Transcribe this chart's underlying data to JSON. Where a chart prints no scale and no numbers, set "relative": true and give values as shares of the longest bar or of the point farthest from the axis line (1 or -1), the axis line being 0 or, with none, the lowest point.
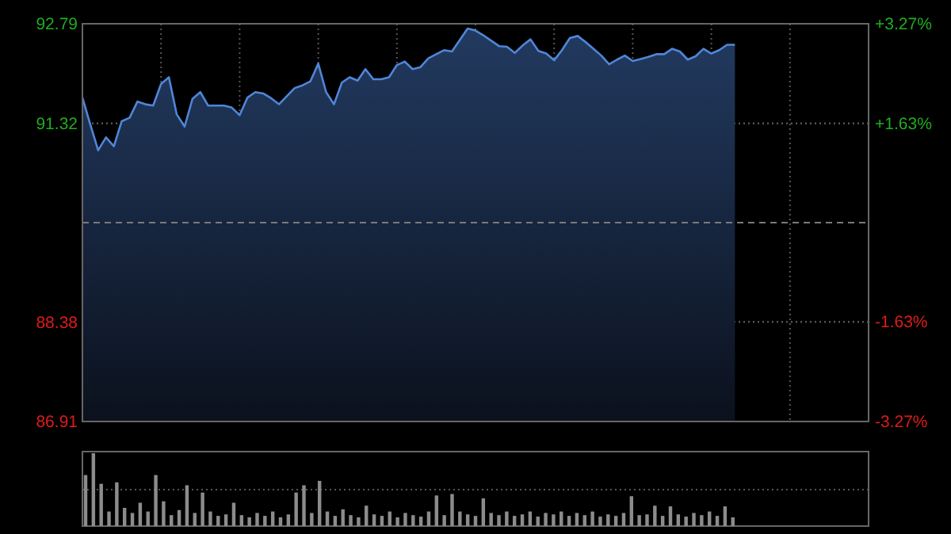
{
  "chart_data": [
    {
      "type": "area",
      "color": "#4f86d9",
      "grid": true,
      "categories": [
        null,
        null,
        null,
        null,
        null,
        null,
        null,
        null,
        null,
        null,
        null,
        null,
        null,
        null,
        null,
        null,
        null,
        null,
        null,
        null,
        null,
        null,
        null,
        null,
        null,
        null,
        null,
        null,
        null,
        null,
        null,
        null,
        null,
        null,
        null,
        null,
        null,
        null,
        null,
        null,
        null,
        null,
        null,
        null,
        null,
        null,
        null,
        null,
        null,
        null,
        null,
        null,
        null,
        null,
        null,
        null,
        null,
        null,
        null,
        null,
        null,
        null,
        null,
        null,
        null,
        null,
        null,
        null,
        null,
        null,
        null,
        null,
        null,
        null,
        null,
        null,
        null,
        null,
        null,
        null,
        null,
        null,
        null,
        null,
        null,
        null,
        null,
        null,
        null,
        null,
        null,
        null,
        null,
        null,
        null,
        null,
        null,
        null,
        null,
        null,
        null
      ],
      "values": [
        91.7,
        91.3,
        90.92,
        91.11,
        90.98,
        91.35,
        91.4,
        91.64,
        91.6,
        91.58,
        91.9,
        92.0,
        91.45,
        91.27,
        91.68,
        91.78,
        91.58,
        91.58,
        91.58,
        91.55,
        91.44,
        91.7,
        91.78,
        91.76,
        91.69,
        91.6,
        91.72,
        91.84,
        91.88,
        91.94,
        92.2,
        91.78,
        91.6,
        91.92,
        92.0,
        91.95,
        92.12,
        91.97,
        91.97,
        92.0,
        92.18,
        92.23,
        92.12,
        92.15,
        92.28,
        92.34,
        92.4,
        92.38,
        92.55,
        92.72,
        92.69,
        92.62,
        92.54,
        92.46,
        92.45,
        92.36,
        92.47,
        92.56,
        92.39,
        92.35,
        92.25,
        92.4,
        92.58,
        92.61,
        92.52,
        92.42,
        92.32,
        92.19,
        92.26,
        92.32,
        92.24,
        92.27,
        92.3,
        92.34,
        92.34,
        92.42,
        92.38,
        92.26,
        92.31,
        92.42,
        92.35,
        92.4,
        92.48,
        92.48,
        null,
        null,
        null,
        null,
        null,
        null,
        null,
        null,
        null,
        null,
        null,
        null,
        null,
        null,
        null,
        null,
        null
      ],
      "ylim": [
        86.91,
        92.79
      ],
      "yticks": [
        86.91,
        88.38,
        91.32,
        92.79
      ],
      "y2lim": [
        -3.27,
        3.27
      ],
      "y2ticks": [
        {
          "value": -3.27,
          "label": "-3.27%"
        },
        {
          "value": -1.63,
          "label": "-1.63%"
        },
        {
          "value": 1.63,
          "label": "+1.63%"
        },
        {
          "value": 3.27,
          "label": "+3.27%"
        }
      ],
      "ref_lines": [
        {
          "axis": "y2",
          "value": 0,
          "line_style": "dashed",
          "color": "#7a7a7a"
        }
      ]
    },
    {
      "type": "bar",
      "relative": true,
      "color": "#8c8c8c",
      "ref_lines": [
        {
          "axis": "y",
          "value": 0.5,
          "line_style": "dotted",
          "color": "#555555"
        }
      ],
      "categories": [
        null,
        null,
        null,
        null,
        null,
        null,
        null,
        null,
        null,
        null,
        null,
        null,
        null,
        null,
        null,
        null,
        null,
        null,
        null,
        null,
        null,
        null,
        null,
        null,
        null,
        null,
        null,
        null,
        null,
        null,
        null,
        null,
        null,
        null,
        null,
        null,
        null,
        null,
        null,
        null,
        null,
        null,
        null,
        null,
        null,
        null,
        null,
        null,
        null,
        null,
        null,
        null,
        null,
        null,
        null,
        null,
        null,
        null,
        null,
        null,
        null,
        null,
        null,
        null,
        null,
        null,
        null,
        null,
        null,
        null,
        null,
        null,
        null,
        null,
        null,
        null,
        null,
        null,
        null,
        null,
        null,
        null,
        null,
        null,
        null,
        null,
        null,
        null,
        null,
        null,
        null,
        null,
        null,
        null,
        null,
        null,
        null,
        null,
        null,
        null,
        null
      ],
      "values": [
        0.7,
        1.0,
        0.58,
        0.2,
        0.6,
        0.25,
        0.18,
        0.32,
        0.2,
        0.7,
        0.34,
        0.15,
        0.22,
        0.56,
        0.18,
        0.46,
        0.2,
        0.14,
        0.16,
        0.32,
        0.15,
        0.12,
        0.18,
        0.14,
        0.2,
        0.12,
        0.16,
        0.46,
        0.56,
        0.18,
        0.62,
        0.2,
        0.14,
        0.23,
        0.15,
        0.12,
        0.28,
        0.16,
        0.14,
        0.2,
        0.12,
        0.18,
        0.15,
        0.13,
        0.2,
        0.42,
        0.15,
        0.44,
        0.2,
        0.16,
        0.14,
        0.38,
        0.18,
        0.15,
        0.2,
        0.14,
        0.16,
        0.2,
        0.13,
        0.18,
        0.16,
        0.2,
        0.14,
        0.18,
        0.15,
        0.2,
        0.13,
        0.16,
        0.14,
        0.18,
        0.41,
        0.15,
        0.16,
        0.28,
        0.14,
        0.27,
        0.16,
        0.13,
        0.18,
        0.15,
        0.2,
        0.14,
        0.27,
        0.12,
        null,
        null,
        null,
        null,
        null,
        null,
        null,
        null,
        null,
        null,
        null,
        null,
        null,
        null,
        null,
        null,
        null
      ]
    }
  ]
}
